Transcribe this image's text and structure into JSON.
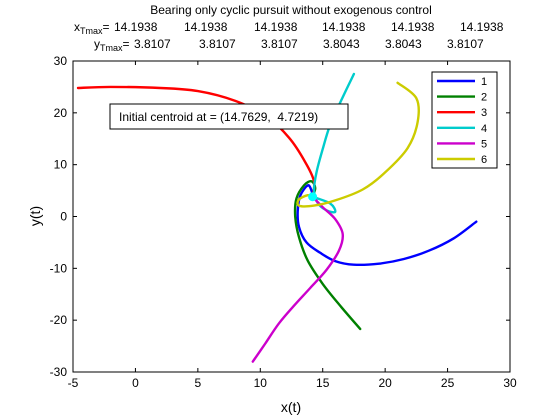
{
  "chart_data": {
    "type": "line",
    "title": "Bearing only cyclic pursuit without exogenous control",
    "header": {
      "x_label": "x",
      "x_sub": "Tmax",
      "x_values": [
        "14.1938",
        "14.1938",
        "14.1938",
        "14.1938",
        "14.1938",
        "14.1938"
      ],
      "y_label": "y",
      "y_sub": "Tmax",
      "y_values": [
        "3.8107",
        "3.8107",
        "3.8107",
        "3.8043",
        "3.8043",
        "3.8107"
      ]
    },
    "xlabel": "x(t)",
    "ylabel": "y(t)",
    "xlim": [
      -5,
      30
    ],
    "ylim": [
      -30,
      30
    ],
    "xticks": [
      -5,
      0,
      5,
      10,
      15,
      20,
      25,
      30
    ],
    "yticks": [
      -30,
      -20,
      -10,
      0,
      10,
      20,
      30
    ],
    "grid": false,
    "legend_position": "top-right",
    "annotation": "Initial centroid at = (14.7629,  4.7219)",
    "centroid": {
      "x": 14.19,
      "y": 3.81,
      "color": "#00ffff"
    },
    "series": [
      {
        "name": "1",
        "color": "#0000ff",
        "points": [
          [
            27.3,
            -1
          ],
          [
            25.5,
            -4.2
          ],
          [
            23.5,
            -6.6
          ],
          [
            21.5,
            -8.2
          ],
          [
            19.5,
            -9.1
          ],
          [
            17.5,
            -9.3
          ],
          [
            16,
            -8.6
          ],
          [
            14.8,
            -7
          ],
          [
            13.7,
            -5
          ],
          [
            13.1,
            -2
          ],
          [
            13,
            1
          ],
          [
            13.2,
            4
          ],
          [
            13.8,
            6
          ],
          [
            14.1,
            5
          ],
          [
            14.19,
            3.81
          ]
        ]
      },
      {
        "name": "2",
        "color": "#008000",
        "points": [
          [
            18,
            -21.7
          ],
          [
            16.5,
            -17.5
          ],
          [
            15,
            -13
          ],
          [
            13.8,
            -8.5
          ],
          [
            13.1,
            -4
          ],
          [
            12.8,
            0
          ],
          [
            12.9,
            3.5
          ],
          [
            13.5,
            6
          ],
          [
            14.1,
            6.8
          ],
          [
            14.4,
            5.5
          ],
          [
            14.19,
            3.81
          ]
        ]
      },
      {
        "name": "3",
        "color": "#ff0000",
        "points": [
          [
            -4.6,
            24.8
          ],
          [
            -2,
            25
          ],
          [
            2,
            24.8
          ],
          [
            5,
            24.2
          ],
          [
            8,
            22.3
          ],
          [
            10.5,
            19.3
          ],
          [
            12.3,
            15.2
          ],
          [
            13.6,
            10.5
          ],
          [
            14.3,
            6.8
          ],
          [
            14.19,
            3.81
          ]
        ]
      },
      {
        "name": "4",
        "color": "#00cccc",
        "points": [
          [
            17.5,
            27.5
          ],
          [
            16.6,
            23
          ],
          [
            15.6,
            17.7
          ],
          [
            15,
            13
          ],
          [
            14.5,
            8.5
          ],
          [
            14.3,
            5
          ],
          [
            14.6,
            2.6
          ],
          [
            15.3,
            1.2
          ],
          [
            16,
            0.9
          ],
          [
            15.6,
            2.5
          ],
          [
            14.19,
            3.81
          ]
        ]
      },
      {
        "name": "5",
        "color": "#cc00cc",
        "points": [
          [
            9.4,
            -28
          ],
          [
            10.4,
            -24.5
          ],
          [
            11.5,
            -20.6
          ],
          [
            12.7,
            -17.2
          ],
          [
            14,
            -13.8
          ],
          [
            15.3,
            -10.3
          ],
          [
            16.3,
            -6.6
          ],
          [
            16.6,
            -3.4
          ],
          [
            16,
            -0.5
          ],
          [
            15,
            1.8
          ],
          [
            14.19,
            3.81
          ]
        ]
      },
      {
        "name": "6",
        "color": "#cccc00",
        "points": [
          [
            21,
            25.8
          ],
          [
            22.5,
            22.8
          ],
          [
            22.6,
            18.2
          ],
          [
            21.8,
            13.2
          ],
          [
            20,
            8.5
          ],
          [
            18.2,
            5.2
          ],
          [
            16,
            3.1
          ],
          [
            14.3,
            2.1
          ],
          [
            13.1,
            2.1
          ],
          [
            13.1,
            3.3
          ],
          [
            13.8,
            4.1
          ],
          [
            14.19,
            3.81
          ]
        ]
      }
    ]
  }
}
